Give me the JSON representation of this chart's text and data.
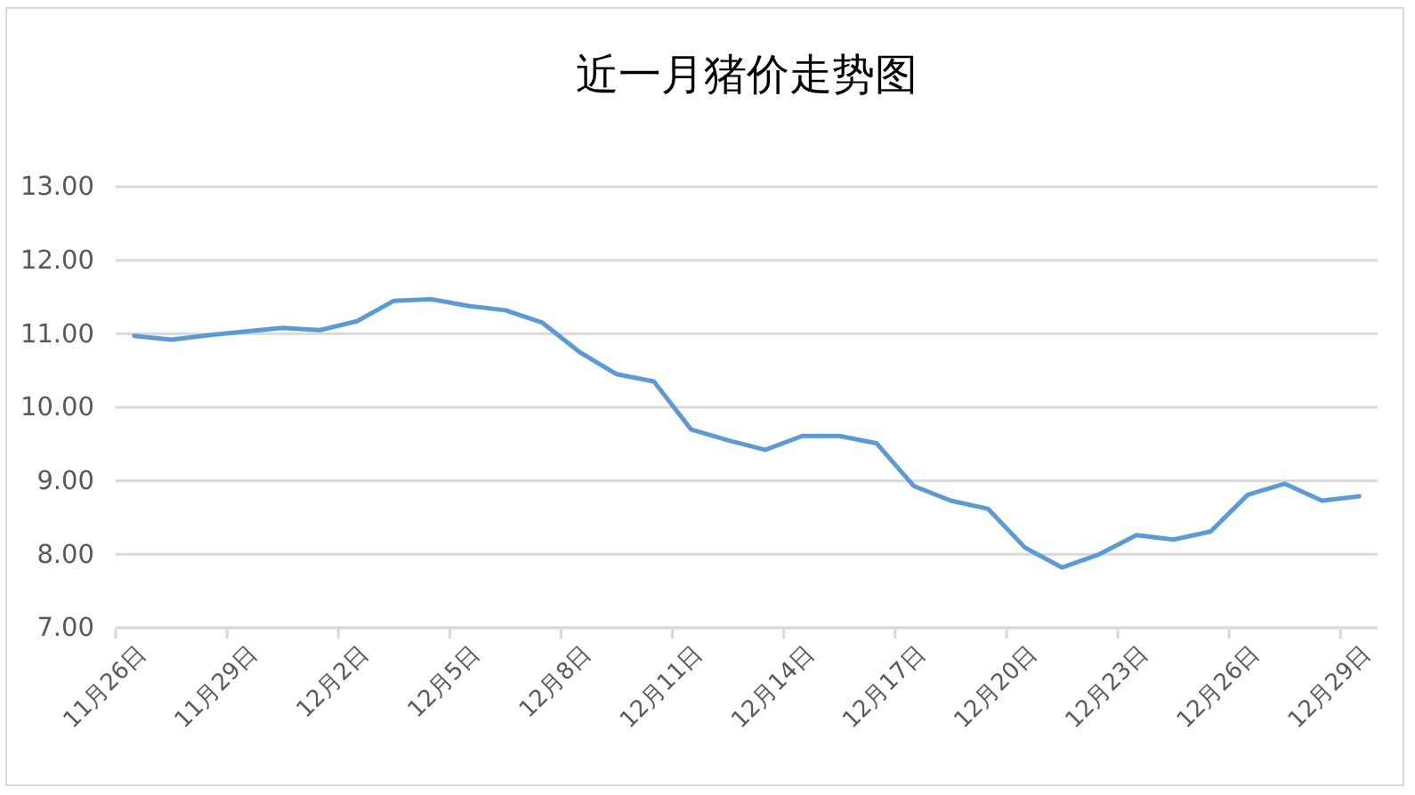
{
  "chart_data": {
    "type": "line",
    "title": "近一月猪价走势图",
    "categories": [
      "11月26日",
      null,
      null,
      "11月29日",
      null,
      null,
      "12月2日",
      null,
      null,
      "12月5日",
      null,
      null,
      "12月8日",
      null,
      null,
      "12月11日",
      null,
      null,
      "12月14日",
      null,
      null,
      "12月17日",
      null,
      null,
      "12月20日",
      null,
      null,
      "12月23日",
      null,
      null,
      "12月26日",
      null,
      null,
      "12月29日"
    ],
    "series": [
      {
        "color": "#5b9bd5",
        "values": [
          10.97,
          10.92,
          10.98,
          11.03,
          11.08,
          11.05,
          11.17,
          11.45,
          11.47,
          11.38,
          11.32,
          11.15,
          10.75,
          10.45,
          10.35,
          9.7,
          9.55,
          9.42,
          9.61,
          9.61,
          9.51,
          8.93,
          8.73,
          8.62,
          8.09,
          7.82,
          8.0,
          8.26,
          8.2,
          8.31,
          8.81,
          8.96,
          8.73,
          8.79
        ]
      }
    ],
    "ylim": [
      7,
      13
    ],
    "yticks": [
      {
        "value": 7,
        "label": "7.00"
      },
      {
        "value": 8,
        "label": "8.00"
      },
      {
        "value": 9,
        "label": "9.00"
      },
      {
        "value": 10,
        "label": "10.00"
      },
      {
        "value": 11,
        "label": "11.00"
      },
      {
        "value": 12,
        "label": "12.00"
      },
      {
        "value": 13,
        "label": "13.00"
      }
    ],
    "grid": "y"
  }
}
